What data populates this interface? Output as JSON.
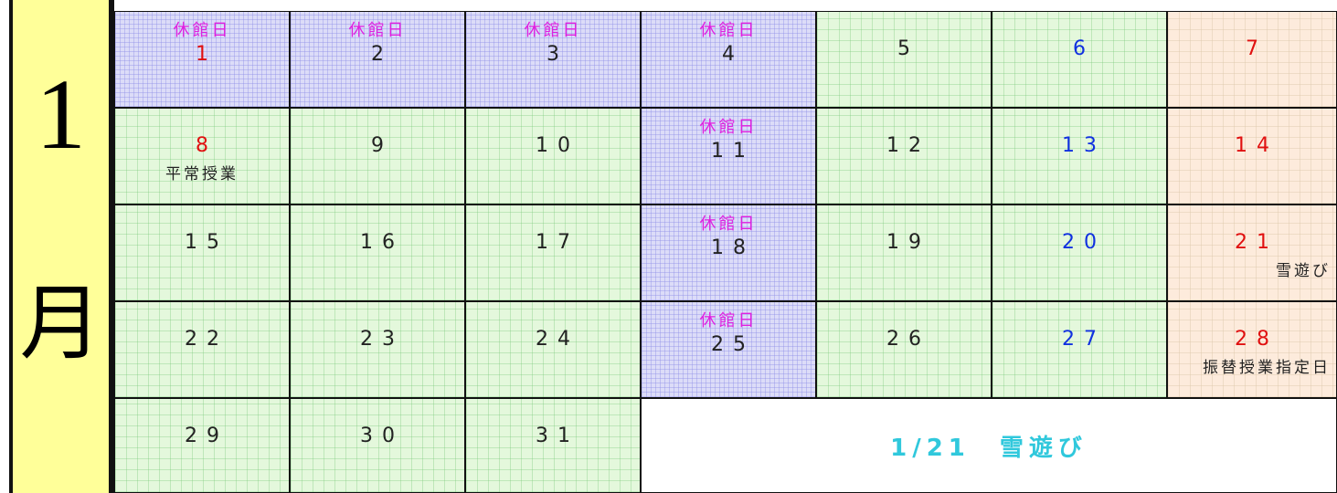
{
  "month": {
    "number": "1",
    "kanji": "月"
  },
  "weeks": [
    [
      {
        "day": 1,
        "label": "休館日",
        "holiday": true
      },
      {
        "day": 2,
        "label": "休館日"
      },
      {
        "day": 3,
        "label": "休館日"
      },
      {
        "day": 4,
        "label": "休館日"
      },
      {
        "day": 5
      },
      {
        "day": 6
      },
      {
        "day": 7
      }
    ],
    [
      {
        "day": 8,
        "holiday": true,
        "note": "平常授業"
      },
      {
        "day": 9
      },
      {
        "day": 10
      },
      {
        "day": 11,
        "label": "休館日"
      },
      {
        "day": 12
      },
      {
        "day": 13
      },
      {
        "day": 14
      }
    ],
    [
      {
        "day": 15
      },
      {
        "day": 16
      },
      {
        "day": 17
      },
      {
        "day": 18,
        "label": "休館日"
      },
      {
        "day": 19
      },
      {
        "day": 20
      },
      {
        "day": 21,
        "note": "雪遊び"
      }
    ],
    [
      {
        "day": 22
      },
      {
        "day": 23
      },
      {
        "day": 24
      },
      {
        "day": 25,
        "label": "休館日"
      },
      {
        "day": 26
      },
      {
        "day": 27
      },
      {
        "day": 28,
        "note": "振替授業指定日"
      }
    ],
    [
      {
        "day": 29
      },
      {
        "day": 30
      },
      {
        "day": 31
      }
    ]
  ],
  "message": "1/21　雪遊び"
}
